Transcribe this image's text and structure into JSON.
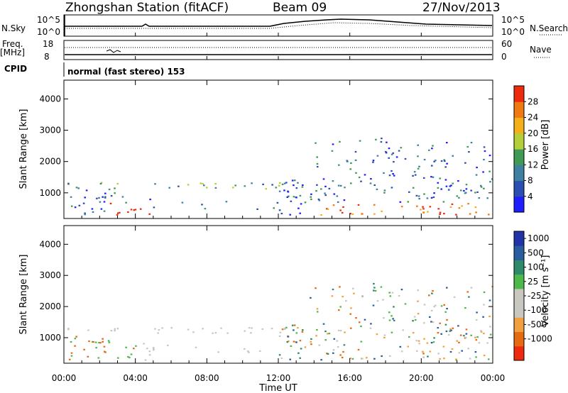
{
  "header": {
    "station": "Zhongshan Station (fitACF)",
    "beam": "Beam 09",
    "date": "27/Nov/2013"
  },
  "top_panels": {
    "nsky_label": "N.Sky",
    "nsky_ticks": [
      "10^5",
      "10^0"
    ],
    "nsearch_label": "N.Search",
    "nsearch_ticks": [
      "10^5",
      "10^0"
    ],
    "freq_label": "Freq.",
    "freq_unit": "[MHz]",
    "freq_ticks": [
      "18",
      "8"
    ],
    "nave_label": "Nave",
    "nave_ticks": [
      "60",
      "0"
    ],
    "cpid_label": "CPID",
    "cpid_value": "normal (fast stereo) 153"
  },
  "chart_data": [
    {
      "type": "heatmap",
      "quantity": "Power",
      "ylabel": "Slant Range [km]",
      "yticks": [
        "1000",
        "2000",
        "3000",
        "4000"
      ],
      "ylim": [
        180,
        4600
      ],
      "xlim": [
        0,
        24
      ],
      "colorbar_label": "Power [dB]",
      "colorbar_ticks": [
        "4",
        "8",
        "12",
        "16",
        "20",
        "24",
        "28"
      ],
      "colorbar_colors": [
        "#1e1eff",
        "#2a4fb0",
        "#3f7fa0",
        "#3e9a55",
        "#b5cf3a",
        "#f3b01a",
        "#f07a12",
        "#ee2a0e"
      ]
    },
    {
      "type": "heatmap",
      "quantity": "Velocity",
      "ylabel": "Slant Range [km]",
      "yticks": [
        "1000",
        "2000",
        "3000",
        "4000"
      ],
      "ylim": [
        180,
        4600
      ],
      "xlim": [
        0,
        24
      ],
      "xlabel": "Time UT",
      "xticks": [
        "00:00",
        "04:00",
        "08:00",
        "12:00",
        "16:00",
        "20:00",
        "00:00"
      ],
      "colorbar_label": "Velocity [m s⁻¹]",
      "colorbar_ticks": [
        "1000",
        "500",
        "100",
        "25",
        "-25",
        "-100",
        "-500",
        "-1000"
      ],
      "colorbar_colors": [
        "#2233a8",
        "#2a5ca0",
        "#2e8a6a",
        "#4fb84a",
        "#c8c8c0",
        "#c8c8c0",
        "#f0a040",
        "#e86a10",
        "#ee2a0e"
      ]
    }
  ]
}
